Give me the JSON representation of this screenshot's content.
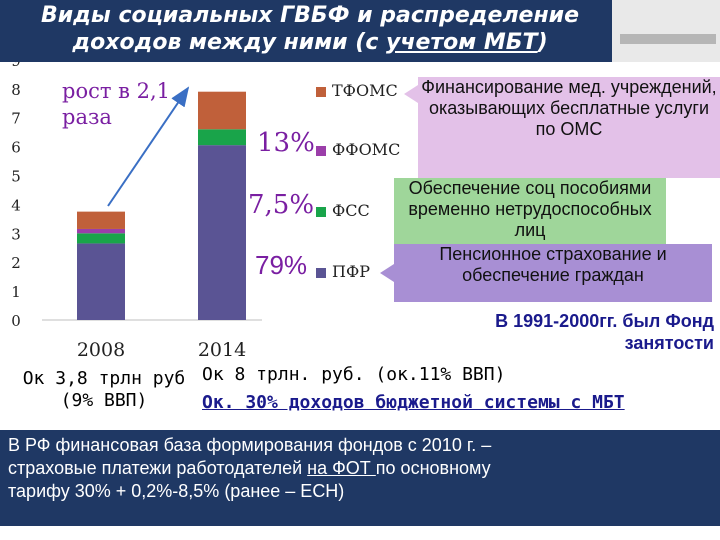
{
  "title": {
    "line1": "Виды социальных ГВБФ и распределение",
    "line2_pre": "доходов между  ними (с ",
    "line2_u": "учетом МБТ",
    "line2_post": ")"
  },
  "growth_note": "рост в 2,1 раза",
  "percent_labels": [
    "13%",
    "7,5%",
    "79%"
  ],
  "legend": [
    "ТФОМС",
    "ФФОМС",
    "ФСС",
    "ПФР"
  ],
  "callouts": {
    "tfoms": "Финансирование мед. учреждений, оказывающих бесплатные услуги по ОМС",
    "fss": "Обеспечение  соц пособиями временно нетрудоспособных лиц",
    "pfr": "Пенсионное страхование и обеспечение граждан"
  },
  "fund_note": "В 1991-2000гг. был Фонд занятости",
  "captions": {
    "y2008_line1": "Ок 3,8 трлн руб",
    "y2008_line2": "(9% ВВП)",
    "y2014_line1": "Ок 8 трлн. руб. (ок.11% ВВП)",
    "y2014_line2": "Ок. 30% доходов бюджетной системы с МБТ"
  },
  "bottom": {
    "line1": "В РФ финансовая база формирования фондов с 2010 г. –",
    "line2_pre": "страховые платежи работодателей ",
    "line2_u": "на ФОТ ",
    "line2_post": "по основному",
    "line3": "тарифу 30% + 0,2%-8,5%           (ранее – ЕСН)"
  },
  "colors": {
    "tfoms": "#c0603a",
    "ffoms": "#9b3ea9",
    "fss": "#19a44a",
    "pfr": "#5a5494",
    "title_bg": "#1f3864"
  },
  "chart_data": {
    "type": "bar",
    "stacked": true,
    "categories": [
      "2008",
      "2014"
    ],
    "series": [
      {
        "name": "ПФР",
        "values": [
          2.65,
          6.05
        ]
      },
      {
        "name": "ФСС",
        "values": [
          0.35,
          0.55
        ]
      },
      {
        "name": "ФФОМС",
        "values": [
          0.15,
          0.0
        ]
      },
      {
        "name": "ТФОМС",
        "values": [
          0.6,
          1.3
        ]
      }
    ],
    "yticks": [
      0,
      1,
      2,
      3,
      4,
      5,
      6,
      7,
      8,
      9
    ],
    "ylim": [
      0,
      9
    ],
    "grid": false,
    "legend_position": "right"
  }
}
